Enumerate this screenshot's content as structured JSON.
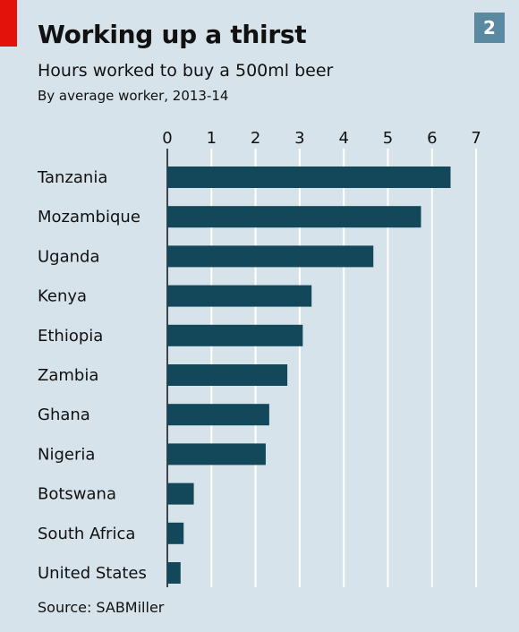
{
  "header": {
    "badge": "2"
  },
  "footer": {
    "source": "Source: SABMiller"
  },
  "colors": {
    "background": "#d6e3ea",
    "bar": "#124859",
    "accent_red": "#e3120b",
    "badge": "#5a8aa2",
    "gridline": "#ffffff"
  },
  "chart_data": {
    "type": "bar",
    "orientation": "horizontal",
    "title": "Working up a thirst",
    "subtitle": "Hours worked to buy a 500ml beer",
    "subtitle2": "By average worker, 2013-14",
    "xlabel": "",
    "ylabel": "",
    "xlim": [
      0,
      7
    ],
    "xticks": [
      "0",
      "1",
      "2",
      "3",
      "4",
      "5",
      "6",
      "7"
    ],
    "grid": true,
    "categories": [
      "Tanzania",
      "Mozambique",
      "Uganda",
      "Kenya",
      "Ethiopia",
      "Zambia",
      "Ghana",
      "Nigeria",
      "Botswana",
      "South Africa",
      "United States"
    ],
    "values": [
      6.42,
      5.75,
      4.67,
      3.27,
      3.07,
      2.72,
      2.31,
      2.23,
      0.6,
      0.37,
      0.3
    ]
  }
}
